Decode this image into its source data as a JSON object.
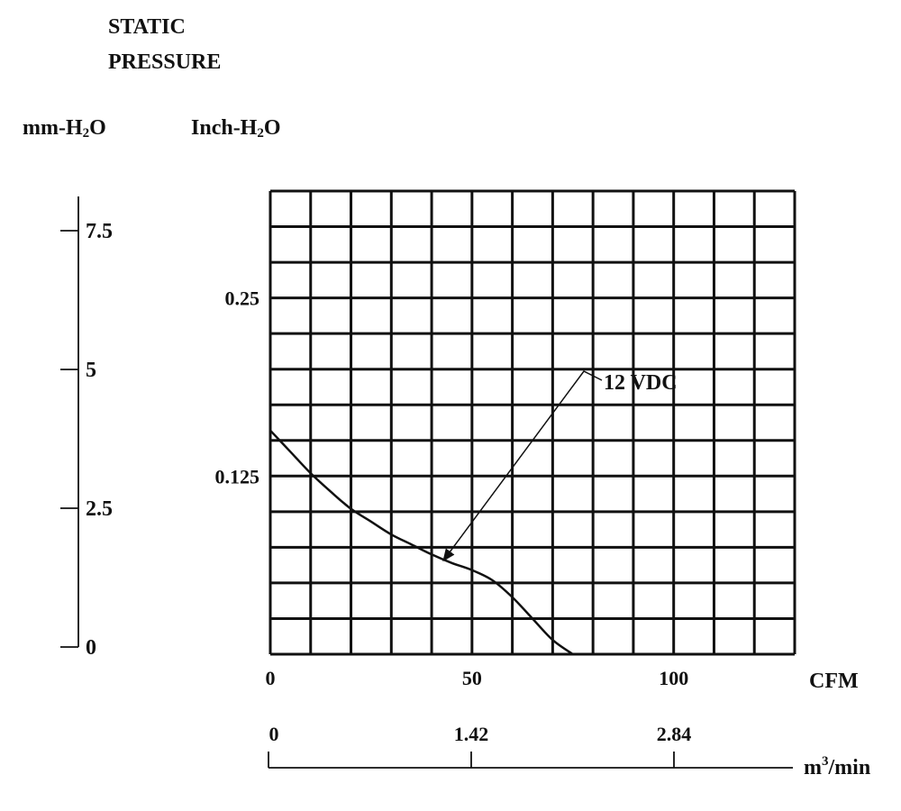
{
  "chart_data": {
    "type": "line",
    "title": "STATIC PRESSURE",
    "title_lines": [
      "STATIC",
      "PRESSURE"
    ],
    "y_axis_left": {
      "unit_base": "mm-H",
      "unit_sub": "2",
      "unit_tail": "O",
      "ticks": [
        {
          "value": 7.5,
          "label": "7.5"
        },
        {
          "value": 5,
          "label": "5"
        },
        {
          "value": 2.5,
          "label": "2.5"
        },
        {
          "value": 0,
          "label": "0"
        }
      ]
    },
    "y_axis_right": {
      "unit_base": "Inch-H",
      "unit_sub": "2",
      "unit_tail": "O",
      "ylim": [
        0,
        0.325
      ],
      "ticks": [
        {
          "value": 0.25,
          "label": "0.25"
        },
        {
          "value": 0.125,
          "label": "0.125"
        }
      ]
    },
    "x_axis_cfm": {
      "unit": "CFM",
      "xlim": [
        0,
        130
      ],
      "ticks": [
        {
          "value": 0,
          "label": "0"
        },
        {
          "value": 50,
          "label": "50"
        },
        {
          "value": 100,
          "label": "100"
        }
      ]
    },
    "x_axis_m3": {
      "unit_base": "m",
      "unit_sup": "3",
      "unit_tail": "/min",
      "ticks": [
        {
          "value": 0,
          "label": "0"
        },
        {
          "value": 1.42,
          "label": "1.42"
        },
        {
          "value": 2.84,
          "label": "2.84"
        }
      ]
    },
    "grid": {
      "on": true,
      "x_step": 10,
      "y_step": 0.025
    },
    "series": [
      {
        "name": "12 VDC",
        "x": [
          0,
          5,
          10,
          15,
          20,
          25,
          30,
          35,
          40,
          45,
          50,
          55,
          60,
          65,
          70,
          75
        ],
        "y": [
          0.157,
          0.142,
          0.127,
          0.114,
          0.102,
          0.093,
          0.084,
          0.077,
          0.07,
          0.064,
          0.059,
          0.052,
          0.04,
          0.025,
          0.01,
          0.0
        ]
      }
    ],
    "annotation": {
      "text": "12 VDC",
      "points_to_x": 43,
      "points_to_y": 0.066
    }
  }
}
